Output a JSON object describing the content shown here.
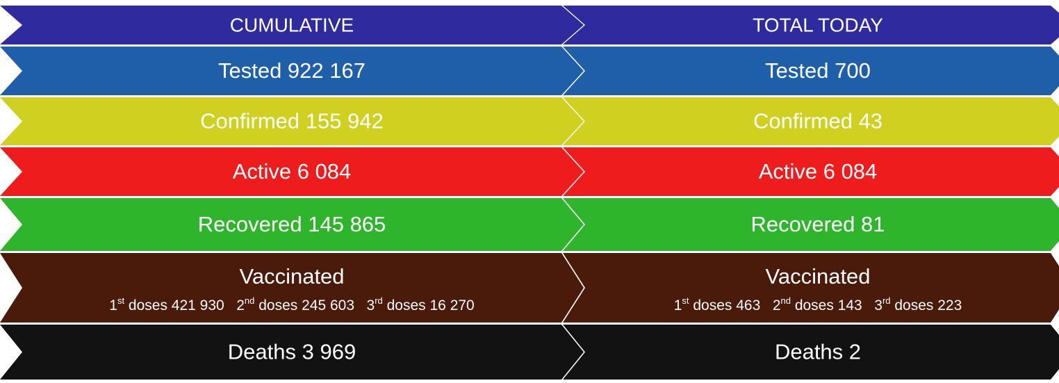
{
  "columns": [
    {
      "title": "CUMULATIVE",
      "rows": [
        {
          "text": "Tested 922 167",
          "color": "#1f5ea8"
        },
        {
          "text": "Confirmed 155 942",
          "color": "#cfd020"
        },
        {
          "text": "Active 6 084",
          "color": "#ee1c1c"
        },
        {
          "text": "Recovered 145 865",
          "color": "#2eb52b"
        },
        {
          "text": "Vaccinated",
          "color": "#4a1a0a",
          "doses": [
            {
              "number": "1",
              "suffix": "st",
              "text": "doses 421 930"
            },
            {
              "number": "2",
              "suffix": "nd",
              "text": "doses 245 603"
            },
            {
              "number": "3",
              "suffix": "rd",
              "text": "doses 16 270"
            }
          ]
        },
        {
          "text": "Deaths 3 969",
          "color": "#121212"
        }
      ],
      "title_color": "#2f2a9e"
    },
    {
      "title": "TOTAL TODAY",
      "rows": [
        {
          "text": "Tested 700",
          "color": "#1f5ea8"
        },
        {
          "text": "Confirmed 43",
          "color": "#cfd020"
        },
        {
          "text": "Active 6 084",
          "color": "#ee1c1c"
        },
        {
          "text": "Recovered 81",
          "color": "#2eb52b"
        },
        {
          "text": "Vaccinated",
          "color": "#4a1a0a",
          "doses": [
            {
              "number": "1",
              "suffix": "st",
              "text": "doses 463"
            },
            {
              "number": "2",
              "suffix": "nd",
              "text": "doses 143"
            },
            {
              "number": "3",
              "suffix": "rd",
              "text": "doses 223"
            }
          ]
        },
        {
          "text": "Deaths 2",
          "color": "#121212"
        }
      ],
      "title_color": "#2f2a9e"
    }
  ]
}
